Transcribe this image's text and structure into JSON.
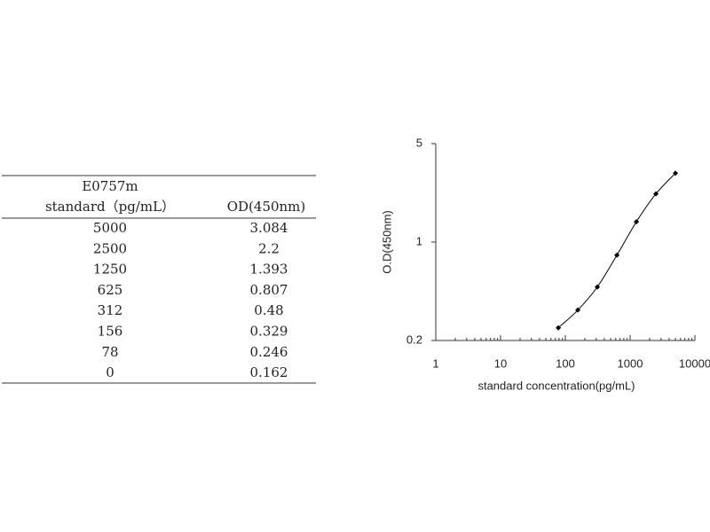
{
  "table": {
    "header": [
      [
        "E0757m",
        "standard（pg/mL）"
      ],
      [
        "OD(450nm)"
      ]
    ],
    "rows": [
      [
        5000,
        3.084
      ],
      [
        2500,
        2.2
      ],
      [
        1250,
        1.393
      ],
      [
        625,
        0.807
      ],
      [
        312,
        0.48
      ],
      [
        156,
        0.329
      ],
      [
        78,
        0.246
      ],
      [
        0,
        0.162
      ]
    ]
  },
  "chart_data": {
    "type": "line",
    "x_label": "standard concentration(pg/mL)",
    "y_label": "O.D(450nm)",
    "x": [
      78,
      156,
      312,
      625,
      1250,
      2500,
      5000
    ],
    "values": [
      0.246,
      0.329,
      0.48,
      0.807,
      1.393,
      2.2,
      3.084
    ],
    "color": "#000000",
    "xlog": true,
    "ylog": true,
    "xlim": [
      1,
      10000
    ],
    "ylim": [
      0.2,
      5
    ],
    "xticks": [
      1,
      10,
      100,
      1000,
      10000
    ],
    "yticks": [
      0.2,
      1,
      5
    ],
    "x_minor_ticks": [
      2,
      3,
      4,
      5,
      6,
      7,
      8,
      9,
      20,
      30,
      40,
      50,
      60,
      70,
      80,
      90,
      200,
      300,
      400,
      500,
      600,
      700,
      800,
      900,
      2000,
      3000,
      4000,
      5000,
      6000,
      7000,
      8000,
      9000
    ]
  }
}
